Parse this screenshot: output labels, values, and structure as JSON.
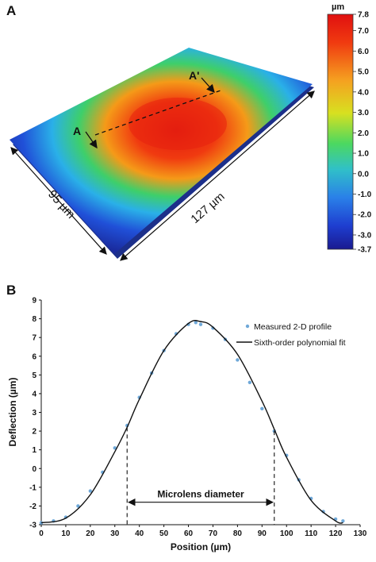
{
  "panel_a": {
    "letter": "A",
    "colorbar_unit": "µm",
    "colorbar_ticks": [
      "7.8",
      "7.0",
      "6.0",
      "5.0",
      "4.0",
      "3.0",
      "2.0",
      "1.0",
      "0.0",
      "-1.0",
      "-2.0",
      "-3.0",
      "-3.7"
    ],
    "colorbar_range": [
      -3.7,
      7.8
    ],
    "dim_width_label": "127 µm",
    "dim_depth_label": "95 µm",
    "section_label_left": "A",
    "section_label_right": "A'",
    "colors": {
      "high": "#e01a10",
      "mid": "#3ecf6a",
      "low": "#1a2a9c"
    }
  },
  "panel_b": {
    "letter": "B"
  },
  "chart_data": {
    "type": "scatter",
    "title": "",
    "xlabel": "Position (µm)",
    "ylabel": "Deflection (µm)",
    "xlim": [
      0,
      130
    ],
    "ylim": [
      -3,
      9
    ],
    "x_ticks": [
      0,
      10,
      20,
      30,
      40,
      50,
      60,
      70,
      80,
      90,
      100,
      110,
      120,
      130
    ],
    "y_ticks": [
      -3,
      -2,
      -1,
      0,
      1,
      2,
      3,
      4,
      5,
      6,
      7,
      8,
      9
    ],
    "legend_position": "top-right",
    "series": [
      {
        "name": "Measured 2-D profile",
        "style": "markers",
        "color": "#6fa8d8",
        "points": [
          [
            0,
            -2.9
          ],
          [
            5,
            -2.8
          ],
          [
            10,
            -2.6
          ],
          [
            15,
            -2.0
          ],
          [
            20,
            -1.2
          ],
          [
            25,
            -0.2
          ],
          [
            30,
            1.1
          ],
          [
            35,
            2.3
          ],
          [
            40,
            3.8
          ],
          [
            45,
            5.1
          ],
          [
            50,
            6.3
          ],
          [
            55,
            7.2
          ],
          [
            60,
            7.7
          ],
          [
            63,
            7.8
          ],
          [
            65,
            7.7
          ],
          [
            70,
            7.5
          ],
          [
            75,
            6.9
          ],
          [
            80,
            5.8
          ],
          [
            85,
            4.6
          ],
          [
            90,
            3.2
          ],
          [
            95,
            2.0
          ],
          [
            100,
            0.7
          ],
          [
            105,
            -0.6
          ],
          [
            110,
            -1.6
          ],
          [
            115,
            -2.3
          ],
          [
            120,
            -2.7
          ],
          [
            123,
            -2.8
          ]
        ]
      },
      {
        "name": "Sixth-order polynomial fit",
        "style": "line",
        "color": "#111111",
        "points": [
          [
            0,
            -2.9
          ],
          [
            10,
            -2.65
          ],
          [
            20,
            -1.4
          ],
          [
            30,
            0.9
          ],
          [
            35,
            2.2
          ],
          [
            40,
            3.7
          ],
          [
            50,
            6.3
          ],
          [
            60,
            7.75
          ],
          [
            65,
            7.85
          ],
          [
            70,
            7.55
          ],
          [
            80,
            6.1
          ],
          [
            90,
            3.6
          ],
          [
            95,
            2.1
          ],
          [
            100,
            0.6
          ],
          [
            110,
            -1.7
          ],
          [
            120,
            -2.8
          ],
          [
            123,
            -2.9
          ]
        ]
      }
    ],
    "annotation": {
      "text": "Microlens diameter",
      "x_start": 35,
      "x_end": 95,
      "arrow_y": -1.8
    }
  }
}
